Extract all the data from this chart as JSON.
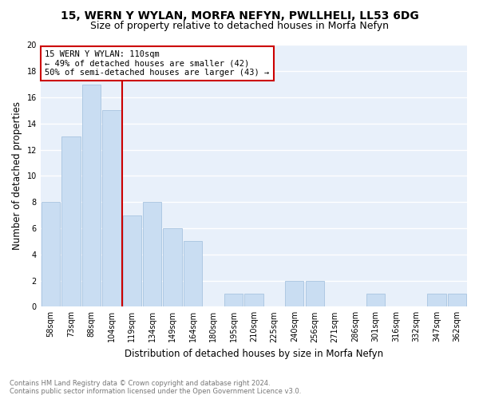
{
  "title": "15, WERN Y WYLAN, MORFA NEFYN, PWLLHELI, LL53 6DG",
  "subtitle": "Size of property relative to detached houses in Morfa Nefyn",
  "xlabel": "Distribution of detached houses by size in Morfa Nefyn",
  "ylabel": "Number of detached properties",
  "categories": [
    "58sqm",
    "73sqm",
    "88sqm",
    "104sqm",
    "119sqm",
    "134sqm",
    "149sqm",
    "164sqm",
    "180sqm",
    "195sqm",
    "210sqm",
    "225sqm",
    "240sqm",
    "256sqm",
    "271sqm",
    "286sqm",
    "301sqm",
    "316sqm",
    "332sqm",
    "347sqm",
    "362sqm"
  ],
  "values": [
    8,
    13,
    17,
    15,
    7,
    8,
    6,
    5,
    0,
    1,
    1,
    0,
    2,
    2,
    0,
    0,
    1,
    0,
    0,
    1,
    1
  ],
  "bar_color": "#c9ddf2",
  "bar_edge_color": "#a8c4e0",
  "background_color": "#e8f0fa",
  "grid_color": "#ffffff",
  "vline_x": 3.5,
  "vline_color": "#cc0000",
  "annotation_line1": "15 WERN Y WYLAN: 110sqm",
  "annotation_line2": "← 49% of detached houses are smaller (42)",
  "annotation_line3": "50% of semi-detached houses are larger (43) →",
  "annotation_box_color": "#ffffff",
  "annotation_box_edge": "#cc0000",
  "ylim": [
    0,
    20
  ],
  "yticks": [
    0,
    2,
    4,
    6,
    8,
    10,
    12,
    14,
    16,
    18,
    20
  ],
  "footer": "Contains HM Land Registry data © Crown copyright and database right 2024.\nContains public sector information licensed under the Open Government Licence v3.0.",
  "title_fontsize": 10,
  "subtitle_fontsize": 9,
  "tick_fontsize": 7,
  "ylabel_fontsize": 8.5,
  "xlabel_fontsize": 8.5,
  "annotation_fontsize": 7.5,
  "footer_fontsize": 6
}
